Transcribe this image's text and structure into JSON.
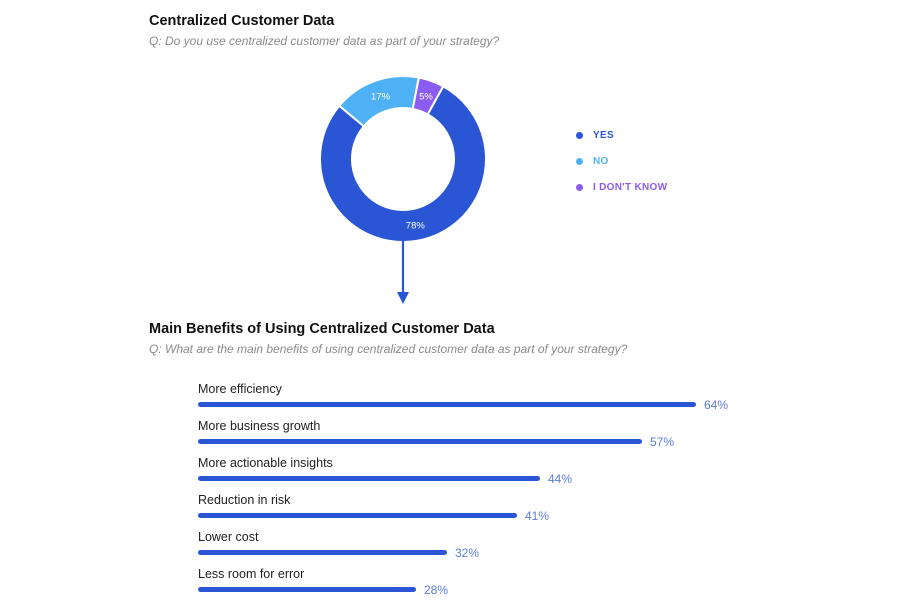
{
  "colors": {
    "yes": "#2a56d6",
    "no": "#4fb1f5",
    "dontknow": "#8b5cf0",
    "bar": "#2a56d6",
    "value": "#5a7ed6"
  },
  "chart_data": [
    {
      "type": "pie",
      "title": "Centralized Customer Data",
      "subtitle": "Q: Do you use centralized customer data as part of your strategy?",
      "slices": [
        {
          "label": "YES",
          "value": 78,
          "display": "78%",
          "color": "#2a56d6"
        },
        {
          "label": "NO",
          "value": 17,
          "display": "17%",
          "color": "#4fb1f5"
        },
        {
          "label": "I DON'T KNOW",
          "value": 5,
          "display": "5%",
          "color": "#8b5cf0"
        }
      ],
      "legend_position": "right"
    },
    {
      "type": "bar",
      "orientation": "horizontal",
      "title": "Main Benefits of Using Centralized Customer Data",
      "subtitle": "Q: What are the main benefits of using centralized customer data as part of your strategy?",
      "categories": [
        "More efficiency",
        "More business growth",
        "More actionable insights",
        "Reduction in risk",
        "Lower cost",
        "Less room for error"
      ],
      "values": [
        64,
        57,
        44,
        41,
        32,
        28
      ],
      "value_labels": [
        "64%",
        "57%",
        "44%",
        "41%",
        "32%",
        "28%"
      ]
    }
  ]
}
